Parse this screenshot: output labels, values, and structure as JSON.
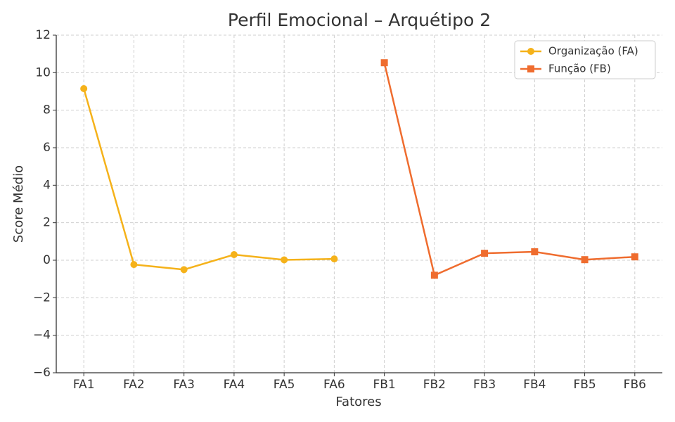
{
  "chart_data": {
    "type": "line",
    "title": "Perfil Emocional – Arquétipo 2",
    "x_label": "Fatores",
    "y_label": "Score Médio",
    "categories": [
      "FA1",
      "FA2",
      "FA3",
      "FA4",
      "FA5",
      "FA6",
      "FB1",
      "FB2",
      "FB3",
      "FB4",
      "FB5",
      "FB6"
    ],
    "series": [
      {
        "name": "Organização (FA)",
        "color": "#f5b21a",
        "marker": "circle",
        "values": [
          9.15,
          -0.23,
          -0.5,
          0.3,
          0.02,
          0.07,
          null,
          null,
          null,
          null,
          null,
          null
        ]
      },
      {
        "name": "Função (FB)",
        "color": "#ef6c2e",
        "marker": "square",
        "values": [
          null,
          null,
          null,
          null,
          null,
          null,
          10.53,
          -0.8,
          0.37,
          0.45,
          0.03,
          0.18
        ]
      }
    ],
    "ylim": [
      -6,
      12
    ],
    "yticks": [
      {
        "value": -6,
        "label": "−6"
      },
      {
        "value": -4,
        "label": "−4"
      },
      {
        "value": -2,
        "label": "−2"
      },
      0,
      2,
      4,
      6,
      8,
      10,
      12
    ],
    "grid": true,
    "legend": "upper right"
  }
}
